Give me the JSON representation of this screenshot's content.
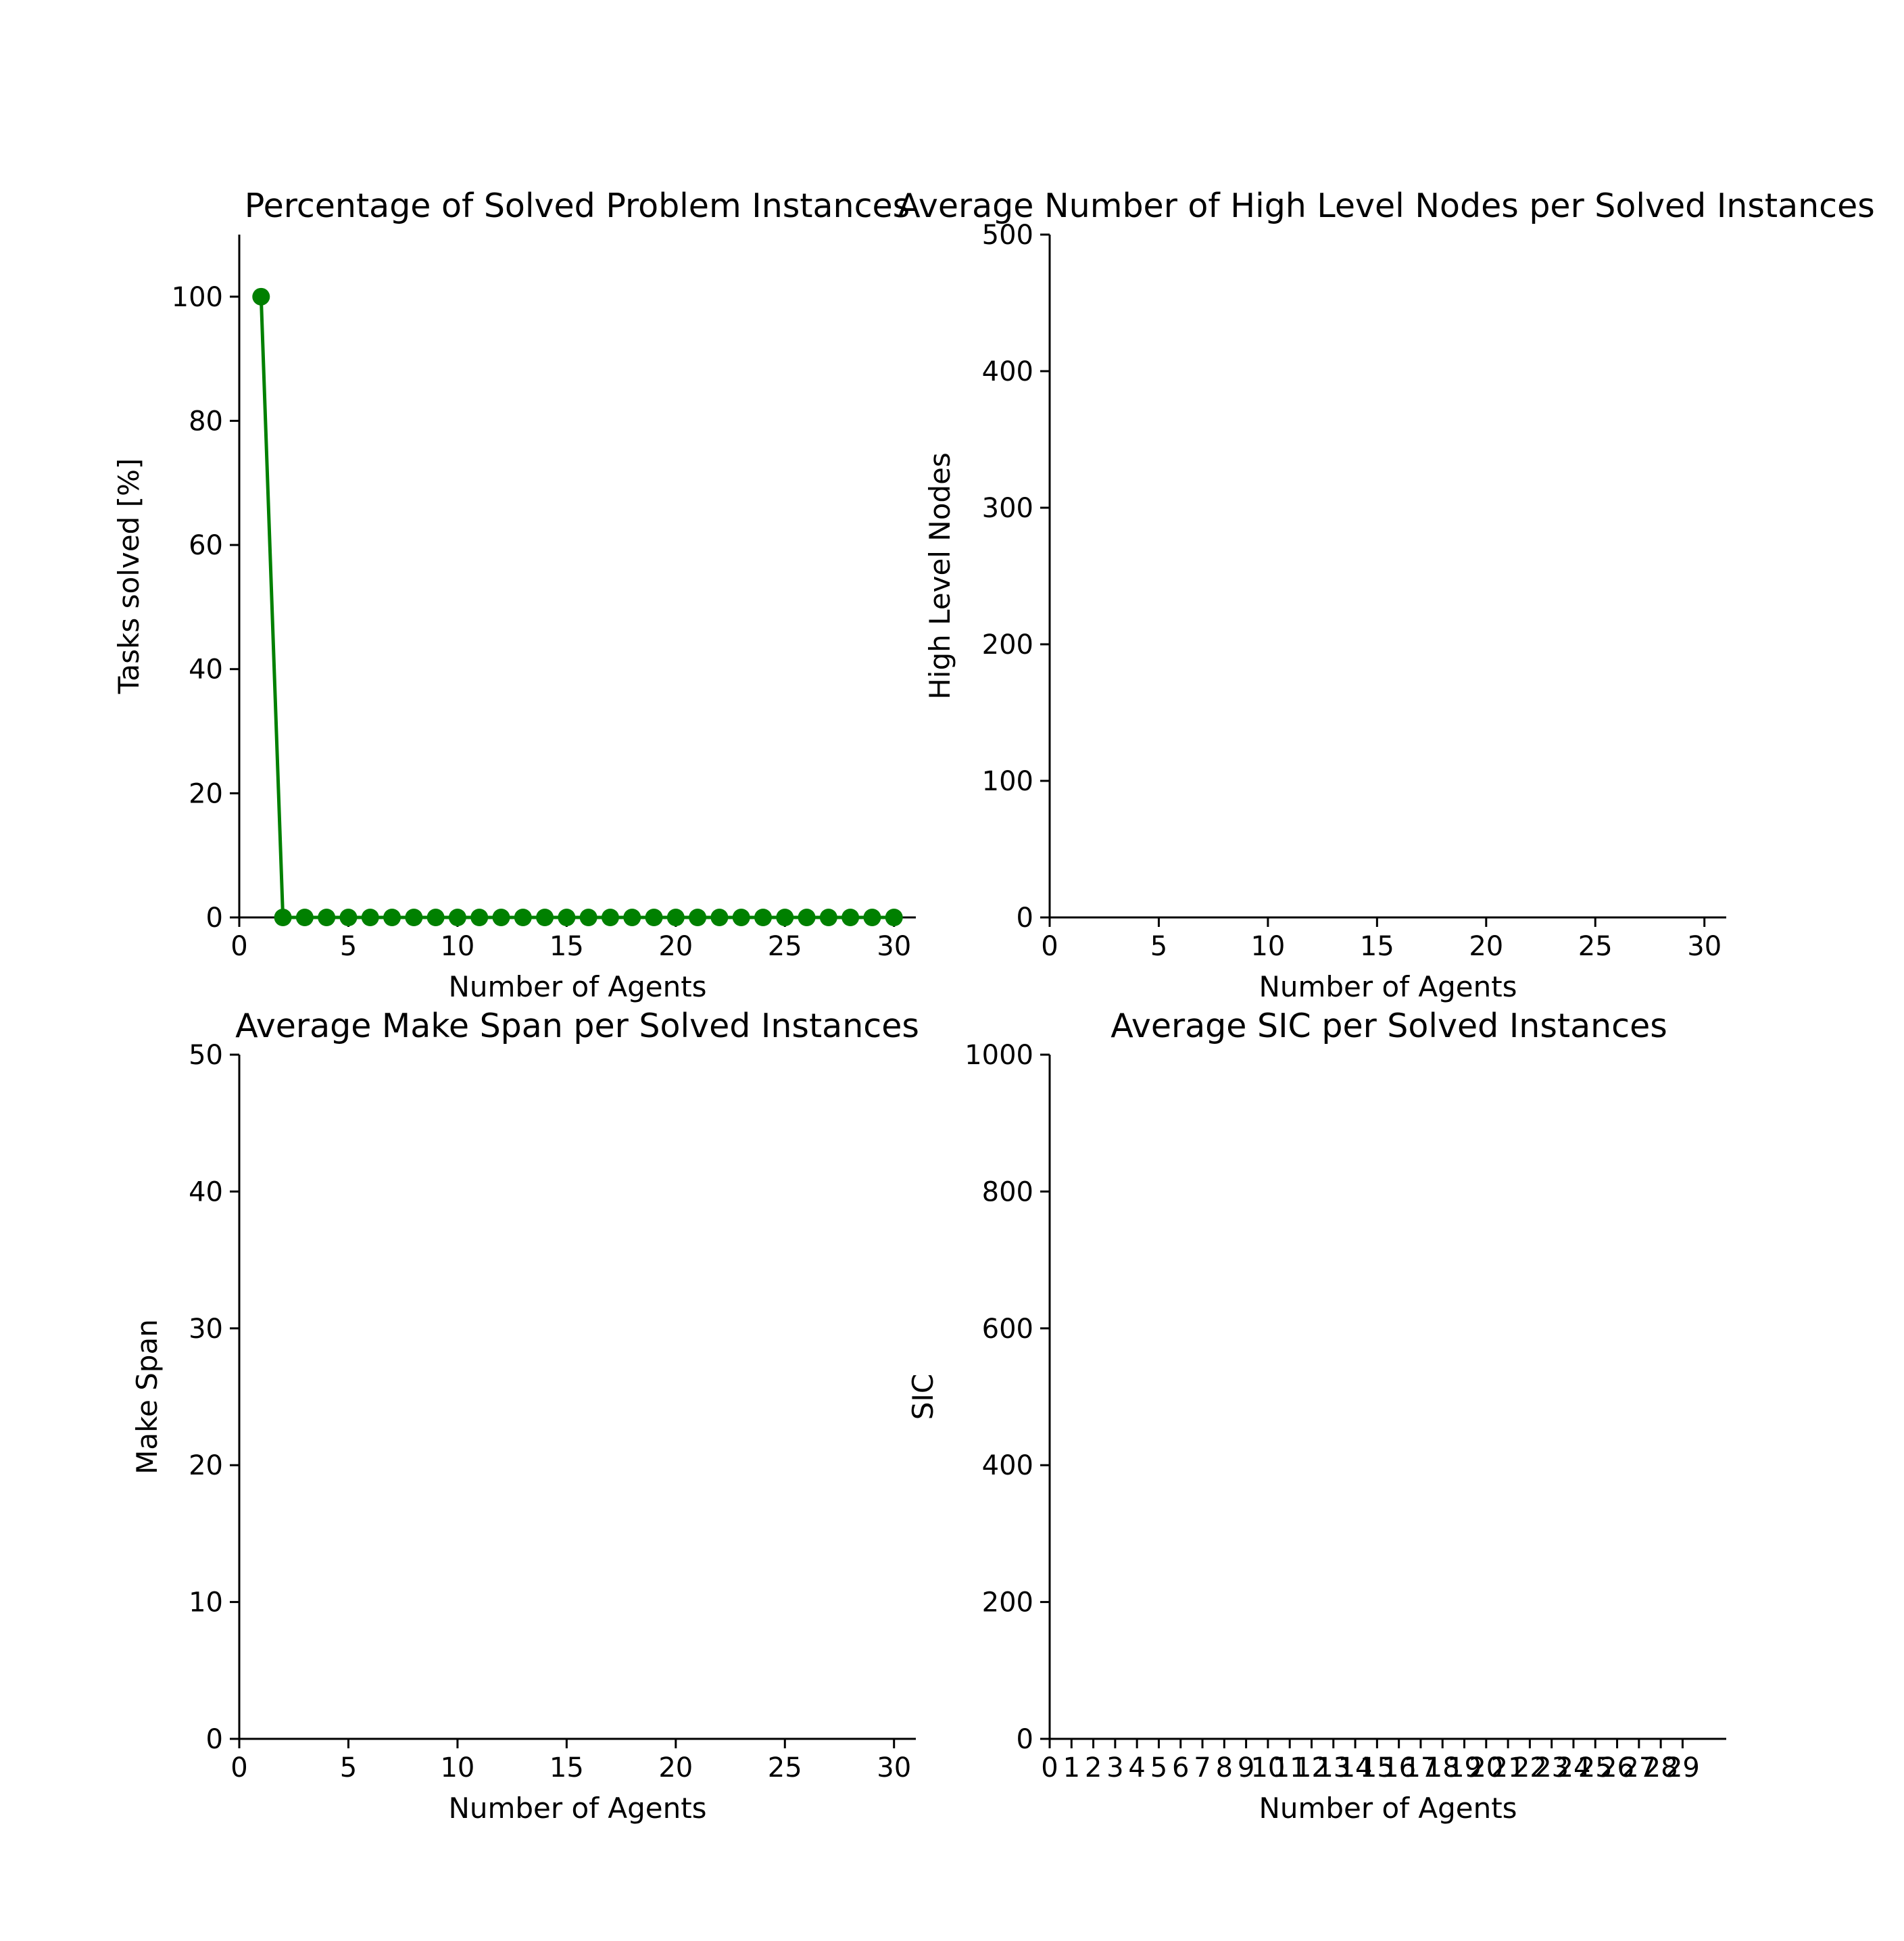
{
  "chart_data": [
    {
      "type": "line",
      "title": "Percentage of Solved Problem Instances",
      "xlabel": "Number of Agents",
      "ylabel": "Tasks solved [%]",
      "xlim": [
        0,
        31
      ],
      "ylim": [
        0,
        110
      ],
      "xticks": [
        0,
        5,
        10,
        15,
        20,
        25,
        30
      ],
      "xtick_labels": [
        "0",
        "5",
        "10",
        "15",
        "20",
        "25",
        "30"
      ],
      "yticks": [
        0,
        20,
        40,
        60,
        80,
        100
      ],
      "ytick_labels": [
        "0",
        "20",
        "40",
        "60",
        "80",
        "100"
      ],
      "grid": false,
      "series": [
        {
          "color": "#008000",
          "marker": "circle",
          "x": [
            1,
            2,
            3,
            4,
            5,
            6,
            7,
            8,
            9,
            10,
            11,
            12,
            13,
            14,
            15,
            16,
            17,
            18,
            19,
            20,
            21,
            22,
            23,
            24,
            25,
            26,
            27,
            28,
            29,
            30
          ],
          "y": [
            100,
            0,
            0,
            0,
            0,
            0,
            0,
            0,
            0,
            0,
            0,
            0,
            0,
            0,
            0,
            0,
            0,
            0,
            0,
            0,
            0,
            0,
            0,
            0,
            0,
            0,
            0,
            0,
            0,
            0
          ]
        }
      ]
    },
    {
      "type": "line",
      "title": "Average Number of High Level Nodes per Solved Instances",
      "xlabel": "Number of Agents",
      "ylabel": "High Level Nodes",
      "xlim": [
        0,
        31
      ],
      "ylim": [
        0,
        500
      ],
      "xticks": [
        0,
        5,
        10,
        15,
        20,
        25,
        30
      ],
      "xtick_labels": [
        "0",
        "5",
        "10",
        "15",
        "20",
        "25",
        "30"
      ],
      "yticks": [
        0,
        100,
        200,
        300,
        400,
        500
      ],
      "ytick_labels": [
        "0",
        "100",
        "200",
        "300",
        "400",
        "500"
      ],
      "grid": false,
      "series": []
    },
    {
      "type": "line",
      "title": "Average Make Span per Solved Instances",
      "xlabel": "Number of Agents",
      "ylabel": "Make Span",
      "xlim": [
        0,
        31
      ],
      "ylim": [
        0,
        50
      ],
      "xticks": [
        0,
        5,
        10,
        15,
        20,
        25,
        30
      ],
      "xtick_labels": [
        "0",
        "5",
        "10",
        "15",
        "20",
        "25",
        "30"
      ],
      "yticks": [
        0,
        10,
        20,
        30,
        40,
        50
      ],
      "ytick_labels": [
        "0",
        "10",
        "20",
        "30",
        "40",
        "50"
      ],
      "grid": false,
      "series": []
    },
    {
      "type": "line",
      "title": "Average SIC per Solved Instances",
      "xlabel": "Number of Agents",
      "ylabel": "SIC",
      "xlim": [
        0,
        31
      ],
      "ylim": [
        0,
        1000
      ],
      "xticks": [
        0,
        1,
        2,
        3,
        4,
        5,
        6,
        7,
        8,
        9,
        10,
        11,
        12,
        13,
        14,
        15,
        16,
        17,
        18,
        19,
        20,
        21,
        22,
        23,
        24,
        25,
        26,
        27,
        28,
        29
      ],
      "xtick_labels": [
        "0",
        "1",
        "2",
        "3",
        "4",
        "5",
        "6",
        "7",
        "8",
        "9",
        "10",
        "11",
        "12",
        "13",
        "14",
        "15",
        "16",
        "17",
        "18",
        "19",
        "20",
        "21",
        "22",
        "23",
        "24",
        "25",
        "26",
        "27",
        "28",
        "29"
      ],
      "yticks": [
        0,
        200,
        400,
        600,
        800,
        1000
      ],
      "ytick_labels": [
        "0",
        "200",
        "400",
        "600",
        "800",
        "1000"
      ],
      "grid": false,
      "series": []
    }
  ]
}
